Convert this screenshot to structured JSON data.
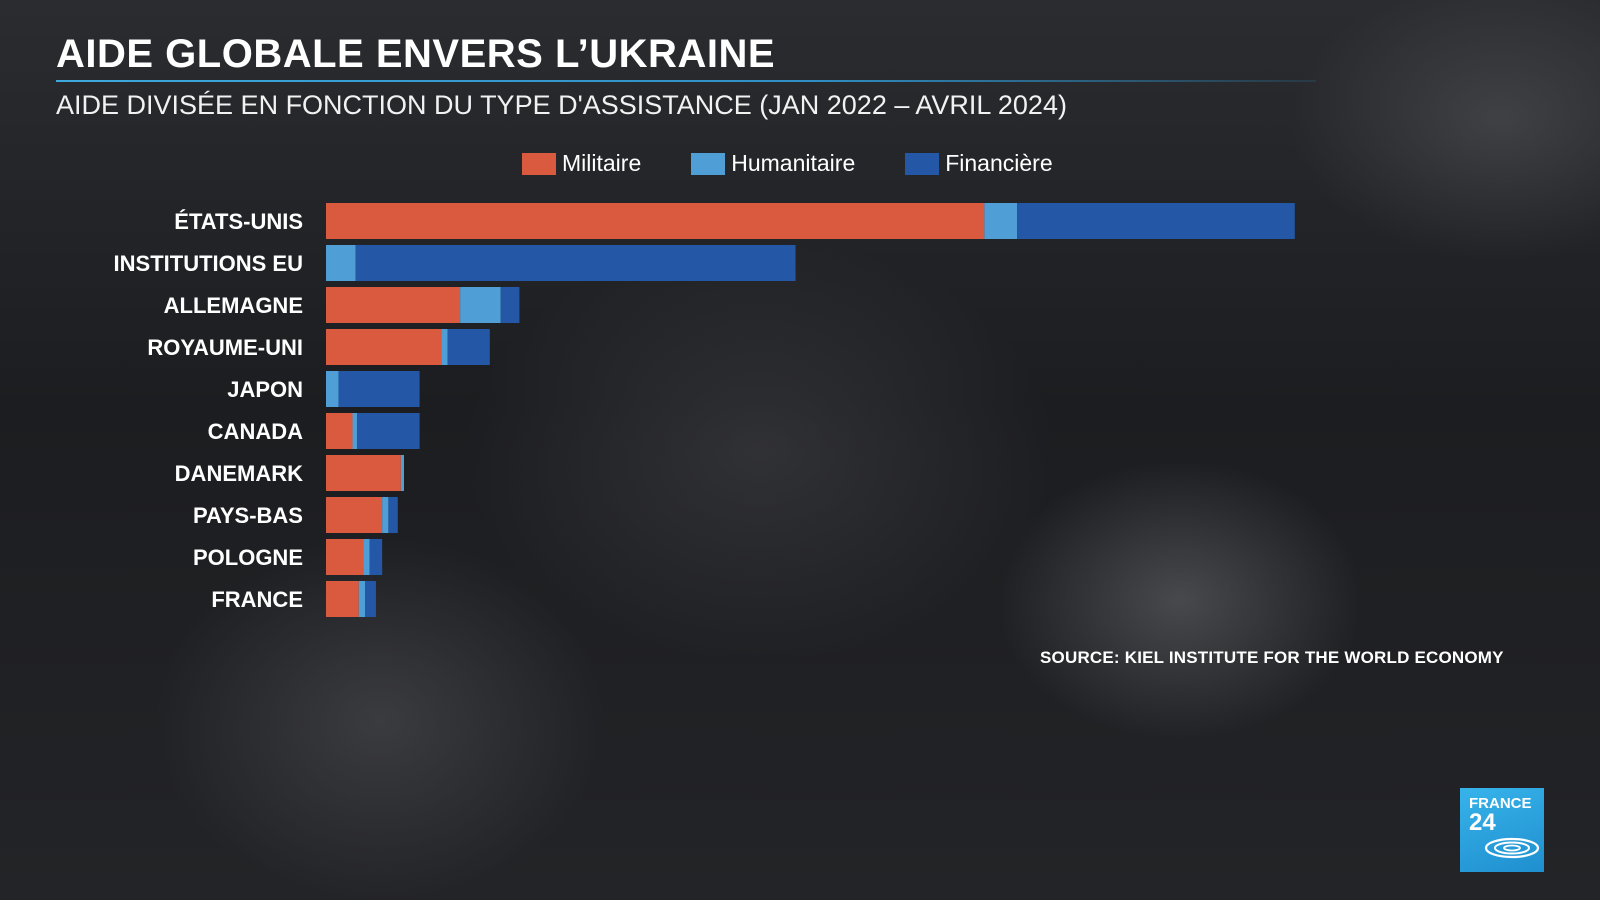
{
  "header": {
    "title": "AIDE GLOBALE ENVERS L’UKRAINE",
    "subtitle": "AIDE DIVISÉE EN FONCTION DU TYPE D'ASSISTANCE (JAN 2022 – AVRIL 2024)"
  },
  "legend": [
    {
      "label": "Militaire",
      "color": "#d95a3f"
    },
    {
      "label": "Humanitaire",
      "color": "#4f9fd6"
    },
    {
      "label": "Financière",
      "color": "#2458a6"
    }
  ],
  "source": "SOURCE: KIEL INSTITUTE FOR THE WORLD ECONOMY",
  "logo": {
    "line1": "FRANCE",
    "line2": "24"
  },
  "chart_data": {
    "type": "bar",
    "orientation": "horizontal",
    "stacked": true,
    "title": "AIDE GLOBALE ENVERS L’UKRAINE",
    "subtitle": "AIDE DIVISÉE EN FONCTION DU TYPE D'ASSISTANCE (JAN 2022 – AVRIL 2024)",
    "xlabel": "",
    "ylabel": "",
    "grid": false,
    "legend_position": "top",
    "categories": [
      "ÉTATS-UNIS",
      "INSTITUTIONS EU",
      "ALLEMAGNE",
      "ROYAUME-UNI",
      "JAPON",
      "CANADA",
      "DANEMARK",
      "PAYS-BAS",
      "POLOGNE",
      "FRANCE"
    ],
    "series": [
      {
        "name": "Militaire",
        "color": "#d95a3f",
        "values": [
          42.2,
          0,
          8.6,
          7.4,
          0,
          1.7,
          4.8,
          3.6,
          2.4,
          2.1
        ]
      },
      {
        "name": "Humanitaire",
        "color": "#4f9fd6",
        "values": [
          2.1,
          1.9,
          2.6,
          0.4,
          0.8,
          0.3,
          0.2,
          0.4,
          0.4,
          0.4
        ]
      },
      {
        "name": "Financière",
        "color": "#2458a6",
        "values": [
          17.8,
          28.2,
          1.2,
          2.7,
          5.2,
          4.0,
          0,
          0.6,
          0.8,
          0.7
        ]
      }
    ]
  }
}
